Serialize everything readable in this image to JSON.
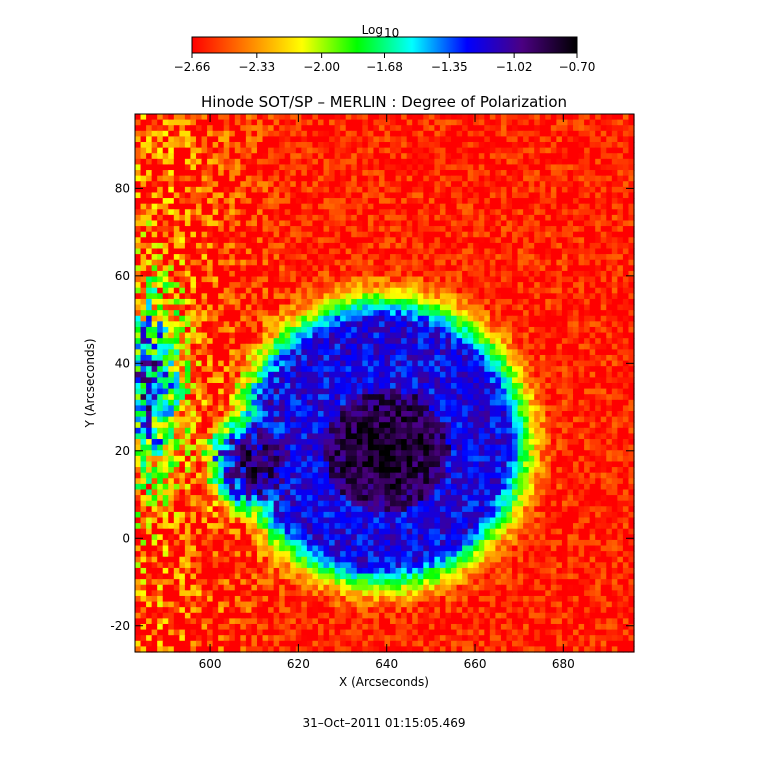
{
  "chart_data": {
    "type": "heatmap",
    "title": "Hinode SOT/SP – MERLIN : Degree of Polarization",
    "xlabel": "X (Arcseconds)",
    "ylabel": "Y (Arcseconds)",
    "xlim": [
      583,
      696
    ],
    "ylim": [
      -26,
      97
    ],
    "xticks": [
      600,
      620,
      640,
      660,
      680
    ],
    "yticks": [
      -20,
      0,
      20,
      40,
      60,
      80
    ],
    "colorbar": {
      "title": "Log",
      "title_sub": "10",
      "range": [
        -2.66,
        -0.7
      ],
      "ticks": [
        "−2.66",
        "−2.33",
        "−2.00",
        "−1.68",
        "−1.35",
        "−1.02",
        "−0.70"
      ],
      "tick_values": [
        -2.66,
        -2.33,
        -2.0,
        -1.68,
        -1.35,
        -1.02,
        -0.7
      ],
      "colormap": [
        "#ff0000",
        "#ff7f00",
        "#ffff00",
        "#00ff00",
        "#00ffff",
        "#0000ff",
        "#4b0082",
        "#000000"
      ]
    },
    "features": {
      "umbra": {
        "center": [
          640,
          20
        ],
        "radius": 14,
        "value": -0.7
      },
      "penumbra": {
        "center": [
          639,
          22
        ],
        "radius": 27,
        "value": -1.2
      },
      "pore": {
        "center": [
          611,
          17
        ],
        "radius": 7,
        "value": -0.85
      },
      "quiet_sun_value": -2.6
    }
  },
  "footer": {
    "date": "31–Oct–2011 01:15:05.469"
  }
}
